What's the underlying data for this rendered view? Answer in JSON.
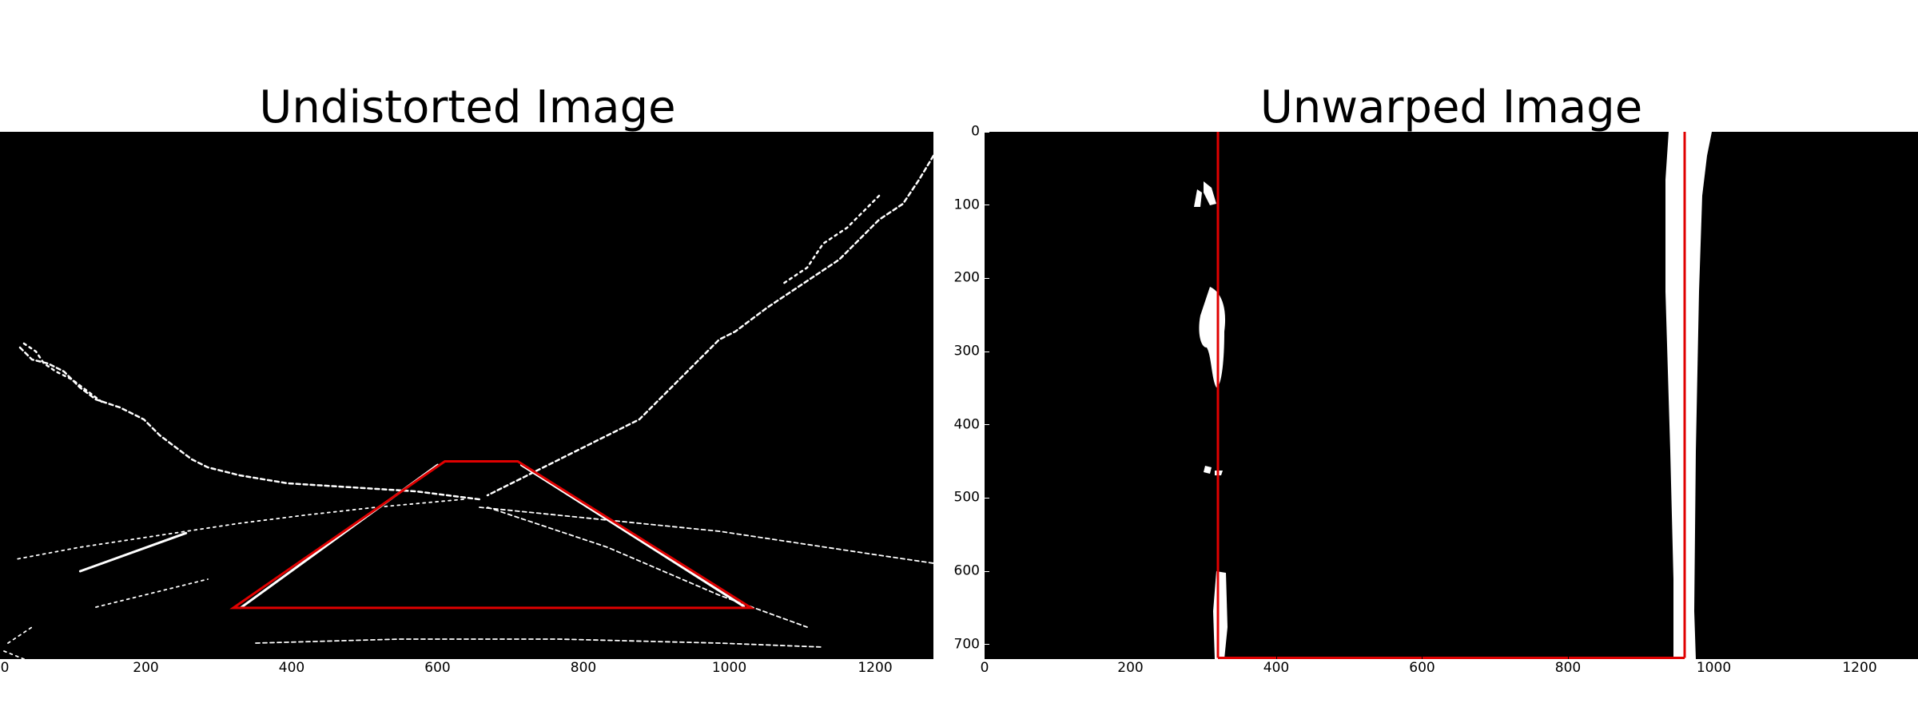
{
  "panels": [
    {
      "id": "undistorted",
      "title": "Undistorted Image",
      "image_width": 1280,
      "image_height": 720,
      "x_ticks": [
        0,
        200,
        400,
        600,
        800,
        1000,
        1200
      ],
      "y_ticks": [],
      "overlay_polygon_color": "#e00000",
      "overlay_polygon": [
        [
          610,
          450
        ],
        [
          710,
          450
        ],
        [
          1030,
          650
        ],
        [
          320,
          650
        ]
      ]
    },
    {
      "id": "unwarped",
      "title": "Unwarped Image",
      "image_width": 1280,
      "image_height": 720,
      "x_ticks": [
        0,
        200,
        400,
        600,
        800,
        1000,
        1200
      ],
      "y_ticks": [
        0,
        100,
        200,
        300,
        400,
        500,
        600,
        700
      ],
      "overlay_polygon_color": "#e00000",
      "overlay_polygon": [
        [
          320,
          0
        ],
        [
          960,
          0
        ],
        [
          960,
          720
        ],
        [
          320,
          720
        ]
      ]
    }
  ]
}
